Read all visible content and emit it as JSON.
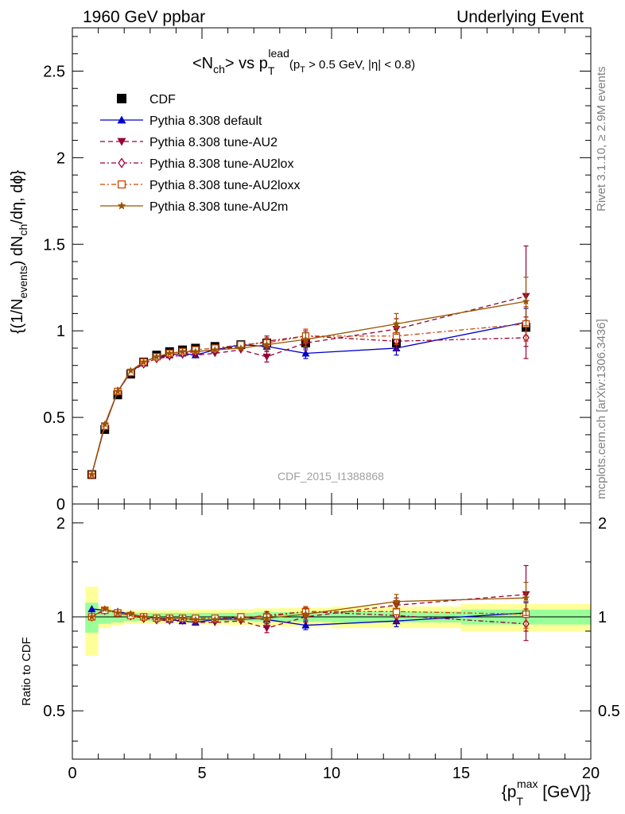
{
  "header": {
    "left": "1960 GeV ppbar",
    "right": "Underlying Event"
  },
  "side": {
    "rivet": "Rivet 3.1.10, ≥ 2.9M events",
    "mcplots": "mcplots.cern.ch [arXiv:1306.3436]"
  },
  "watermark": "CDF_2015_I1388868",
  "chart_data": [
    {
      "type": "scatter",
      "panel": "main",
      "title": "<N_ch> vs p_T^lead (p_T > 0.5 GeV, |η| < 0.8)",
      "ylabel": "{(1/N_events) dN_ch/dη, dφ}",
      "xlim": [
        0,
        20
      ],
      "ylim": [
        0,
        2.75
      ],
      "yticks": [
        "0",
        "0.5",
        "1",
        "1.5",
        "2",
        "2.5"
      ],
      "legend_position": "top-left",
      "x": [
        0.75,
        1.25,
        1.75,
        2.25,
        2.75,
        3.25,
        3.75,
        4.25,
        4.75,
        5.5,
        6.5,
        7.5,
        9.0,
        12.5,
        17.5
      ],
      "series": [
        {
          "name": "CDF",
          "color": "#000000",
          "marker": "square",
          "line": "none",
          "values": [
            0.17,
            0.43,
            0.63,
            0.75,
            0.82,
            0.86,
            0.88,
            0.89,
            0.9,
            0.91,
            0.92,
            0.93,
            0.93,
            0.93,
            1.02
          ]
        },
        {
          "name": "Pythia 8.308 default",
          "color": "#0000cc",
          "marker": "triangle-up",
          "line": "solid",
          "values": [
            0.17,
            0.45,
            0.65,
            0.76,
            0.82,
            0.85,
            0.86,
            0.87,
            0.86,
            0.89,
            0.92,
            0.91,
            0.87,
            0.9,
            1.05
          ],
          "errors": [
            0,
            0,
            0,
            0,
            0,
            0,
            0,
            0,
            0,
            0,
            0,
            0.03,
            0.03,
            0.04,
            0.08
          ]
        },
        {
          "name": "Pythia 8.308 tune-AU2",
          "color": "#990033",
          "marker": "triangle-down",
          "line": "dashed",
          "values": [
            0.17,
            0.45,
            0.65,
            0.76,
            0.81,
            0.84,
            0.85,
            0.86,
            0.86,
            0.87,
            0.89,
            0.85,
            0.93,
            1.01,
            1.2
          ],
          "errors": [
            0,
            0,
            0,
            0,
            0,
            0,
            0,
            0,
            0,
            0,
            0,
            0.03,
            0.04,
            0.06,
            0.29
          ]
        },
        {
          "name": "Pythia 8.308 tune-AU2lox",
          "color": "#990033",
          "marker": "diamond-open",
          "line": "dashdot",
          "values": [
            0.17,
            0.45,
            0.65,
            0.76,
            0.81,
            0.84,
            0.86,
            0.87,
            0.88,
            0.89,
            0.91,
            0.94,
            0.97,
            0.94,
            0.96
          ],
          "errors": [
            0,
            0,
            0,
            0,
            0,
            0,
            0,
            0,
            0,
            0,
            0,
            0.03,
            0.03,
            0.05,
            0.12
          ]
        },
        {
          "name": "Pythia 8.308 tune-AU2loxx",
          "color": "#cc4400",
          "marker": "square-open",
          "line": "dashdot",
          "values": [
            0.17,
            0.45,
            0.65,
            0.76,
            0.82,
            0.85,
            0.87,
            0.88,
            0.89,
            0.9,
            0.92,
            0.93,
            0.97,
            0.97,
            1.04
          ],
          "errors": [
            0,
            0,
            0,
            0,
            0,
            0,
            0,
            0,
            0,
            0,
            0,
            0.03,
            0.04,
            0.05,
            0.1
          ]
        },
        {
          "name": "Pythia 8.308 tune-AU2m",
          "color": "#995500",
          "marker": "star",
          "line": "solid",
          "values": [
            0.17,
            0.46,
            0.65,
            0.77,
            0.82,
            0.85,
            0.87,
            0.88,
            0.88,
            0.89,
            0.9,
            0.92,
            0.95,
            1.04,
            1.17
          ],
          "errors": [
            0,
            0,
            0,
            0,
            0,
            0,
            0,
            0,
            0,
            0,
            0,
            0.03,
            0.04,
            0.06,
            0.14
          ]
        }
      ]
    },
    {
      "type": "scatter",
      "panel": "ratio",
      "xlabel": "{p_T^max [GeV]}",
      "ylabel": "Ratio to CDF",
      "xlim": [
        0,
        20
      ],
      "ylim": [
        0.35,
        2.3
      ],
      "yscale": "log",
      "xticks": [
        "0",
        "5",
        "10",
        "15",
        "20"
      ],
      "yticks": [
        "0.5",
        "1",
        "2"
      ],
      "reference_line": 1,
      "x": [
        0.75,
        1.25,
        1.75,
        2.25,
        2.75,
        3.25,
        3.75,
        4.25,
        4.75,
        5.5,
        6.5,
        7.5,
        9.0,
        12.5,
        17.5
      ],
      "bins": [
        [
          0.5,
          1.0
        ],
        [
          1.0,
          1.5
        ],
        [
          1.5,
          2.0
        ],
        [
          2.0,
          2.5
        ],
        [
          2.5,
          3.0
        ],
        [
          3.0,
          3.5
        ],
        [
          3.5,
          4.0
        ],
        [
          4.0,
          4.5
        ],
        [
          4.5,
          5.0
        ],
        [
          5.0,
          6.0
        ],
        [
          6.0,
          7.0
        ],
        [
          7.0,
          8.0
        ],
        [
          8.0,
          10.0
        ],
        [
          10.0,
          15.0
        ],
        [
          15.0,
          20.0
        ]
      ],
      "band_green": [
        0.11,
        0.05,
        0.04,
        0.03,
        0.03,
        0.03,
        0.03,
        0.03,
        0.03,
        0.03,
        0.03,
        0.035,
        0.035,
        0.04,
        0.055
      ],
      "band_yellow": [
        0.25,
        0.08,
        0.06,
        0.05,
        0.05,
        0.05,
        0.05,
        0.05,
        0.055,
        0.055,
        0.06,
        0.065,
        0.07,
        0.08,
        0.1
      ],
      "series": [
        {
          "name": "Pythia 8.308 default",
          "color": "#0000cc",
          "marker": "triangle-up",
          "line": "solid",
          "values": [
            1.06,
            1.05,
            1.04,
            1.02,
            1.0,
            0.99,
            0.98,
            0.97,
            0.96,
            0.98,
            1.0,
            0.98,
            0.94,
            0.97,
            1.03
          ],
          "errors": [
            0,
            0,
            0,
            0,
            0,
            0,
            0,
            0,
            0,
            0,
            0,
            0.03,
            0.03,
            0.04,
            0.08
          ]
        },
        {
          "name": "Pythia 8.308 tune-AU2",
          "color": "#990033",
          "marker": "triangle-down",
          "line": "dashed",
          "values": [
            1.0,
            1.05,
            1.03,
            1.01,
            0.99,
            0.98,
            0.97,
            0.97,
            0.96,
            0.96,
            0.97,
            0.92,
            1.0,
            1.09,
            1.18
          ],
          "errors": [
            0,
            0,
            0,
            0,
            0,
            0,
            0,
            0,
            0,
            0,
            0,
            0.03,
            0.04,
            0.06,
            0.28
          ]
        },
        {
          "name": "Pythia 8.308 tune-AU2lox",
          "color": "#990033",
          "marker": "diamond-open",
          "line": "dashdot",
          "values": [
            1.0,
            1.05,
            1.03,
            1.01,
            0.99,
            0.98,
            0.98,
            0.98,
            0.98,
            0.98,
            0.99,
            1.01,
            1.04,
            1.01,
            0.95
          ],
          "errors": [
            0,
            0,
            0,
            0,
            0,
            0,
            0,
            0,
            0,
            0,
            0,
            0.03,
            0.03,
            0.05,
            0.11
          ]
        },
        {
          "name": "Pythia 8.308 tune-AU2loxx",
          "color": "#cc4400",
          "marker": "square-open",
          "line": "dashdot",
          "values": [
            1.0,
            1.05,
            1.03,
            1.01,
            1.0,
            0.99,
            0.99,
            0.99,
            0.99,
            0.99,
            1.0,
            1.0,
            1.04,
            1.04,
            1.02
          ],
          "errors": [
            0,
            0,
            0,
            0,
            0,
            0,
            0,
            0,
            0,
            0,
            0,
            0.03,
            0.04,
            0.05,
            0.1
          ]
        },
        {
          "name": "Pythia 8.308 tune-AU2m",
          "color": "#995500",
          "marker": "star",
          "line": "solid",
          "values": [
            1.0,
            1.06,
            1.03,
            1.02,
            1.0,
            0.99,
            0.99,
            0.99,
            0.98,
            0.98,
            0.98,
            0.99,
            1.02,
            1.12,
            1.15
          ],
          "errors": [
            0,
            0,
            0,
            0,
            0,
            0,
            0,
            0,
            0,
            0,
            0,
            0.03,
            0.04,
            0.06,
            0.14
          ]
        }
      ]
    }
  ]
}
